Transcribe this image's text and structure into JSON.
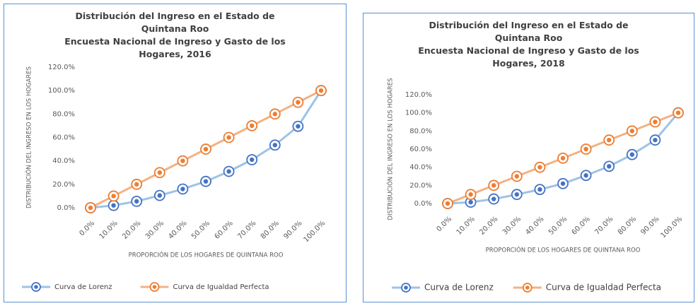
{
  "chart_data": [
    {
      "type": "line",
      "title": "Distribución del Ingreso en el Estado de Quintana Roo",
      "subtitle": "Encuesta Nacional de Ingreso y Gasto de los Hogares, 2016",
      "x_label": "PROPORCIÓN DE LOS HOGARES DE QUINTANA ROO",
      "y_label": "DISTRIBUCIÓN DEL INGRESO EN LOS HOGARES",
      "categories": [
        "0.0%",
        "10.0%",
        "20.0%",
        "30.0%",
        "40.0%",
        "50.0%",
        "60.0%",
        "70.0%",
        "80.0%",
        "90.0%",
        "100.0%"
      ],
      "series": [
        {
          "name": "Curva de Lorenz",
          "color": "#4472c4",
          "values": [
            0,
            2,
            5.5,
            10.5,
            16,
            22.5,
            31,
            41,
            53.5,
            69.5,
            100
          ]
        },
        {
          "name": "Curva de Igualdad Perfecta",
          "color": "#ed7d31",
          "values": [
            0,
            10,
            20,
            30,
            40,
            50,
            60,
            70,
            80,
            90,
            100
          ]
        }
      ],
      "ylim": [
        0,
        120
      ],
      "yticks": [
        {
          "value": 0,
          "label": "0.0%"
        },
        {
          "value": 20,
          "label": "20.0%"
        },
        {
          "value": 40,
          "label": "40.0%"
        },
        {
          "value": 60,
          "label": "60.0%"
        },
        {
          "value": 80,
          "label": "80.0%"
        },
        {
          "value": 100,
          "label": "100.0%"
        },
        {
          "value": 120,
          "label": "120.0%"
        }
      ],
      "legend": "bottom"
    },
    {
      "type": "line",
      "title": "Distribución del Ingreso en el Estado de Quintana Roo",
      "subtitle": "Encuesta Nacional de Ingreso y Gasto de los Hogares, 2018",
      "x_label": "PROPORCIÓN DE LOS HOGARES DE QUINTANA ROO",
      "y_label": "DISTRIBUCIÓN DEL INGRESO EN LOS HOGARES",
      "categories": [
        "0.0%",
        "10.0%",
        "20.0%",
        "30.0%",
        "40.0%",
        "50.0%",
        "60.0%",
        "70.0%",
        "80.0%",
        "90.0%",
        "100.0%"
      ],
      "series": [
        {
          "name": "Curva de Lorenz",
          "color": "#4472c4",
          "values": [
            0,
            1.5,
            5,
            10,
            15.5,
            22,
            31,
            41,
            54,
            70,
            100
          ]
        },
        {
          "name": "Curva de Igualdad Perfecta",
          "color": "#ed7d31",
          "values": [
            0,
            10,
            20,
            30,
            40,
            50,
            60,
            70,
            80,
            90,
            100
          ]
        }
      ],
      "ylim": [
        0,
        120
      ],
      "yticks": [
        {
          "value": 0,
          "label": "0.0%"
        },
        {
          "value": 20,
          "label": "20.0%"
        },
        {
          "value": 40,
          "label": "40.0%"
        },
        {
          "value": 60,
          "label": "60.0%"
        },
        {
          "value": 80,
          "label": "80.0%"
        },
        {
          "value": 100,
          "label": "100.0%"
        },
        {
          "value": 120,
          "label": "120.0%"
        }
      ],
      "legend": "bottom"
    }
  ]
}
